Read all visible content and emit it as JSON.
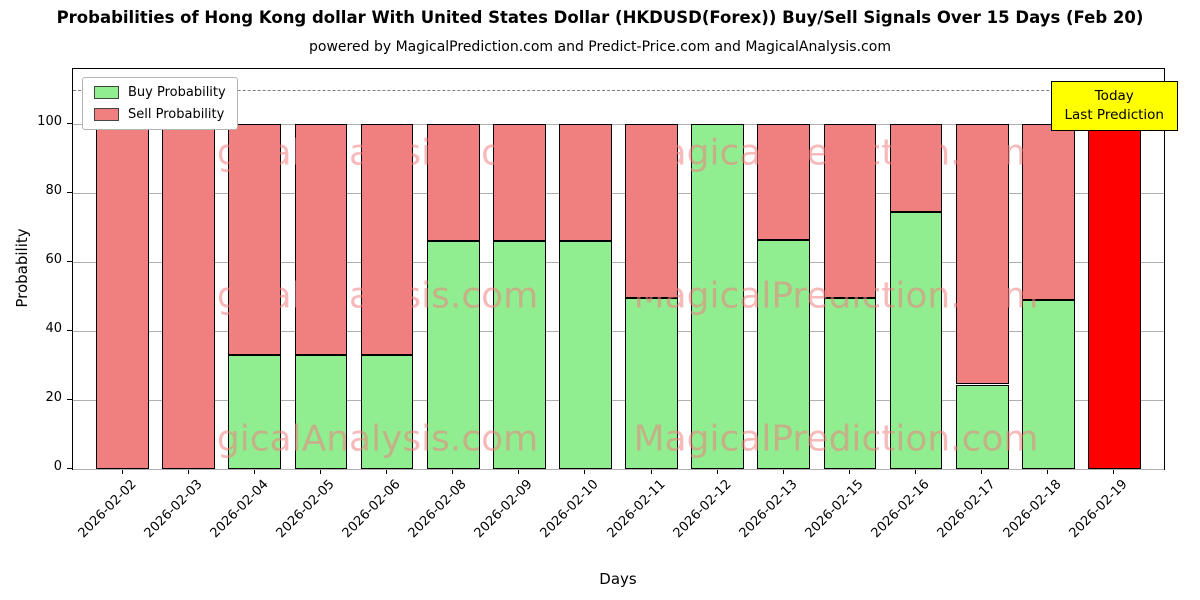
{
  "title": "Probabilities of Hong Kong dollar With United States Dollar (HKDUSD(Forex)) Buy/Sell Signals Over 15 Days (Feb 20)",
  "subtitle": "powered by MagicalPrediction.com and Predict-Price.com and MagicalAnalysis.com",
  "watermarks": {
    "left": "MagicalAnalysis.com",
    "right": "MagicalPrediction.com"
  },
  "annotation_box": {
    "line1": "Today",
    "line2": "Last Prediction",
    "bg": "#ffff00"
  },
  "legend": [
    {
      "label": "Buy Probability",
      "color": "#90ee90"
    },
    {
      "label": "Sell Probability",
      "color": "#f08080"
    }
  ],
  "chart_data": {
    "type": "bar",
    "stacked": true,
    "title": "Probabilities of Hong Kong dollar With United States Dollar (HKDUSD(Forex)) Buy/Sell Signals Over 15 Days (Feb 20)",
    "xlabel": "Days",
    "ylabel": "Probability",
    "categories": [
      "2026-02-02",
      "2026-02-03",
      "2026-02-04",
      "2026-02-05",
      "2026-02-06",
      "2026-02-08",
      "2026-02-09",
      "2026-02-10",
      "2026-02-11",
      "2026-02-12",
      "2026-02-13",
      "2026-02-15",
      "2026-02-16",
      "2026-02-17",
      "2026-02-18",
      "2026-02-19"
    ],
    "series": [
      {
        "name": "Buy Probability",
        "color": "#90ee90",
        "values": [
          0,
          0,
          33,
          33,
          33,
          66,
          66,
          66,
          49.5,
          100,
          66.5,
          49.5,
          74.5,
          24.5,
          49,
          0
        ]
      },
      {
        "name": "Sell Probability",
        "color": "#f08080",
        "values": [
          100,
          100,
          67,
          67,
          67,
          34,
          34,
          34,
          50.5,
          0,
          33.5,
          50.5,
          25.5,
          75.5,
          51,
          100
        ]
      }
    ],
    "today_index": 15,
    "today_bar": {
      "category": "2026-02-19",
      "value": 100,
      "color": "#ff0000"
    },
    "yticks": [
      0,
      20,
      40,
      60,
      80,
      100
    ],
    "ylim": [
      0,
      116
    ],
    "dashed_line_y": 110,
    "grid": true,
    "legend_position": "upper left"
  }
}
